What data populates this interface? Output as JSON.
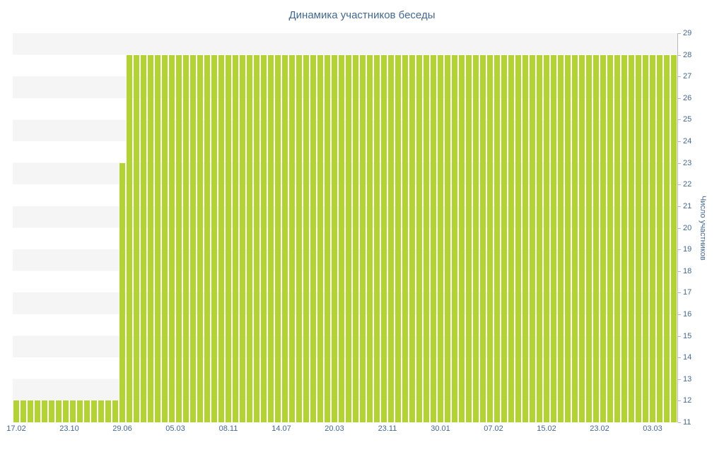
{
  "chart_data": {
    "type": "bar",
    "title": "Динамика участников беседы",
    "xlabel": "",
    "ylabel": "Число участников",
    "ylim": [
      11,
      29
    ],
    "ytick_step": 1,
    "legend": "none",
    "grid": "striped-horizontal-bands",
    "bar_color": "#b3d233",
    "stripe_color": "#f5f5f5",
    "axis_text_color": "#45688e",
    "values": [
      12,
      12,
      12,
      12,
      12,
      12,
      12,
      12,
      12,
      12,
      12,
      12,
      12,
      12,
      12,
      23,
      28,
      28,
      28,
      28,
      28,
      28,
      28,
      28,
      28,
      28,
      28,
      28,
      28,
      28,
      28,
      28,
      28,
      28,
      28,
      28,
      28,
      28,
      28,
      28,
      28,
      28,
      28,
      28,
      28,
      28,
      28,
      28,
      28,
      28,
      28,
      28,
      28,
      28,
      28,
      28,
      28,
      28,
      28,
      28,
      28,
      28,
      28,
      28,
      28,
      28,
      28,
      28,
      28,
      28,
      28,
      28,
      28,
      28,
      28,
      28,
      28,
      28,
      28,
      28,
      28,
      28,
      28,
      28,
      28,
      28,
      28,
      28,
      28,
      28,
      28,
      28,
      28,
      28
    ],
    "x_tick_labels": [
      {
        "label": "17.02",
        "bar_index": 0
      },
      {
        "label": "23.10",
        "bar_index": 7.5
      },
      {
        "label": "29.06",
        "bar_index": 15
      },
      {
        "label": "05.03",
        "bar_index": 22.5
      },
      {
        "label": "08.11",
        "bar_index": 30
      },
      {
        "label": "14.07",
        "bar_index": 37.5
      },
      {
        "label": "20.03",
        "bar_index": 45
      },
      {
        "label": "23.11",
        "bar_index": 52.5
      },
      {
        "label": "30.01",
        "bar_index": 60
      },
      {
        "label": "07.02",
        "bar_index": 67.5
      },
      {
        "label": "15.02",
        "bar_index": 75
      },
      {
        "label": "23.02",
        "bar_index": 82.5
      },
      {
        "label": "03.03",
        "bar_index": 90
      }
    ]
  }
}
